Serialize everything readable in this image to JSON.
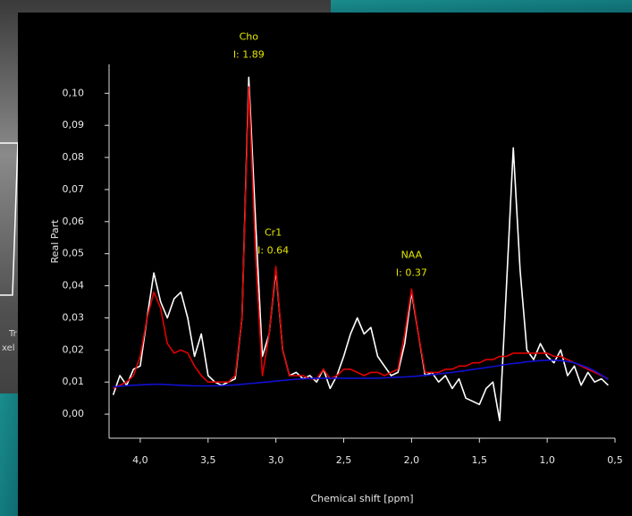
{
  "chart_data": {
    "type": "line",
    "xlabel": "Chemical shift [ppm]",
    "ylabel": "Real Part",
    "xlim": [
      4.23,
      0.5
    ],
    "ylim": [
      -0.0075,
      0.109
    ],
    "xticks": [
      {
        "value": 4.0,
        "label": "4,0"
      },
      {
        "value": 3.5,
        "label": "3,5"
      },
      {
        "value": 3.0,
        "label": "3,0"
      },
      {
        "value": 2.5,
        "label": "2,5"
      },
      {
        "value": 2.0,
        "label": "2,0"
      },
      {
        "value": 1.5,
        "label": "1,5"
      },
      {
        "value": 1.0,
        "label": "1,0"
      },
      {
        "value": 0.5,
        "label": "0,5"
      }
    ],
    "yticks": [
      {
        "value": 0,
        "label": "0,00"
      },
      {
        "value": 0.01,
        "label": "0,01"
      },
      {
        "value": 0.02,
        "label": "0,02"
      },
      {
        "value": 0.03,
        "label": "0,03"
      },
      {
        "value": 0.04,
        "label": "0,04"
      },
      {
        "value": 0.05,
        "label": "0,05"
      },
      {
        "value": 0.06,
        "label": "0,06"
      },
      {
        "value": 0.07,
        "label": "0,07"
      },
      {
        "value": 0.08,
        "label": "0,08"
      },
      {
        "value": 0.09,
        "label": "0,09"
      },
      {
        "value": 0.1,
        "label": "0,10"
      }
    ],
    "x": [
      4.2,
      4.15,
      4.1,
      4.05,
      4.0,
      3.95,
      3.9,
      3.85,
      3.8,
      3.75,
      3.7,
      3.65,
      3.6,
      3.55,
      3.5,
      3.45,
      3.4,
      3.35,
      3.3,
      3.25,
      3.2,
      3.15,
      3.1,
      3.05,
      3.0,
      2.95,
      2.9,
      2.85,
      2.8,
      2.75,
      2.7,
      2.65,
      2.6,
      2.55,
      2.5,
      2.45,
      2.4,
      2.35,
      2.3,
      2.25,
      2.2,
      2.15,
      2.1,
      2.05,
      2.0,
      1.95,
      1.9,
      1.85,
      1.8,
      1.75,
      1.7,
      1.65,
      1.6,
      1.55,
      1.5,
      1.45,
      1.4,
      1.35,
      1.3,
      1.25,
      1.2,
      1.15,
      1.1,
      1.05,
      1.0,
      0.95,
      0.9,
      0.85,
      0.8,
      0.75,
      0.7,
      0.65,
      0.6,
      0.55
    ],
    "series": [
      {
        "color": "#ffffff",
        "values": [
          0.006,
          0.012,
          0.009,
          0.014,
          0.015,
          0.03,
          0.044,
          0.035,
          0.03,
          0.036,
          0.038,
          0.03,
          0.018,
          0.025,
          0.012,
          0.01,
          0.009,
          0.01,
          0.011,
          0.03,
          0.105,
          0.06,
          0.018,
          0.025,
          0.045,
          0.02,
          0.012,
          0.013,
          0.011,
          0.012,
          0.01,
          0.014,
          0.008,
          0.012,
          0.018,
          0.025,
          0.03,
          0.025,
          0.027,
          0.018,
          0.015,
          0.012,
          0.013,
          0.022,
          0.038,
          0.025,
          0.012,
          0.013,
          0.01,
          0.012,
          0.008,
          0.011,
          0.005,
          0.004,
          0.003,
          0.008,
          0.01,
          -0.002,
          0.04,
          0.083,
          0.045,
          0.02,
          0.017,
          0.022,
          0.018,
          0.016,
          0.02,
          0.012,
          0.015,
          0.009,
          0.013,
          0.01,
          0.011,
          0.009
        ]
      },
      {
        "color": "#e00000",
        "values": [
          0.008,
          0.009,
          0.01,
          0.012,
          0.018,
          0.03,
          0.038,
          0.033,
          0.022,
          0.019,
          0.02,
          0.019,
          0.015,
          0.012,
          0.01,
          0.01,
          0.01,
          0.01,
          0.012,
          0.03,
          0.102,
          0.05,
          0.012,
          0.025,
          0.046,
          0.02,
          0.012,
          0.012,
          0.012,
          0.011,
          0.011,
          0.014,
          0.011,
          0.012,
          0.014,
          0.014,
          0.013,
          0.012,
          0.013,
          0.013,
          0.012,
          0.013,
          0.014,
          0.025,
          0.039,
          0.025,
          0.013,
          0.013,
          0.013,
          0.014,
          0.014,
          0.015,
          0.015,
          0.016,
          0.016,
          0.017,
          0.017,
          0.018,
          0.018,
          0.019,
          0.019,
          0.019,
          0.019,
          0.019,
          0.019,
          0.018,
          0.018,
          0.017,
          0.016,
          0.015,
          0.014,
          0.013,
          0.012,
          0.011
        ]
      },
      {
        "color": "#1010d0",
        "values": [
          0.0085,
          0.0087,
          0.0089,
          0.009,
          0.0091,
          0.0092,
          0.0093,
          0.0093,
          0.0092,
          0.0091,
          0.009,
          0.0089,
          0.0088,
          0.0088,
          0.0088,
          0.0088,
          0.0089,
          0.009,
          0.0091,
          0.0093,
          0.0095,
          0.0097,
          0.0099,
          0.0101,
          0.0103,
          0.0105,
          0.0107,
          0.0109,
          0.011,
          0.0111,
          0.0112,
          0.0112,
          0.0112,
          0.0112,
          0.0112,
          0.0112,
          0.0112,
          0.0112,
          0.0112,
          0.0112,
          0.0113,
          0.0114,
          0.0115,
          0.0116,
          0.0117,
          0.0119,
          0.0121,
          0.0123,
          0.0125,
          0.0128,
          0.013,
          0.0133,
          0.0136,
          0.0139,
          0.0142,
          0.0145,
          0.0148,
          0.0152,
          0.0155,
          0.0158,
          0.016,
          0.0163,
          0.0165,
          0.0167,
          0.0168,
          0.0168,
          0.0167,
          0.0164,
          0.016,
          0.0153,
          0.0145,
          0.0135,
          0.0122,
          0.0108
        ]
      }
    ],
    "annotations": [
      {
        "x": 3.2,
        "y": 0.108,
        "label": "Cho",
        "text": "I: 1.89"
      },
      {
        "x": 3.02,
        "y": 0.047,
        "label": "Cr1",
        "text": "I: 0.64"
      },
      {
        "x": 2.0,
        "y": 0.04,
        "label": "NAA",
        "text": "I: 0.37"
      }
    ]
  },
  "background_text": [
    "Tr",
    "xel"
  ]
}
